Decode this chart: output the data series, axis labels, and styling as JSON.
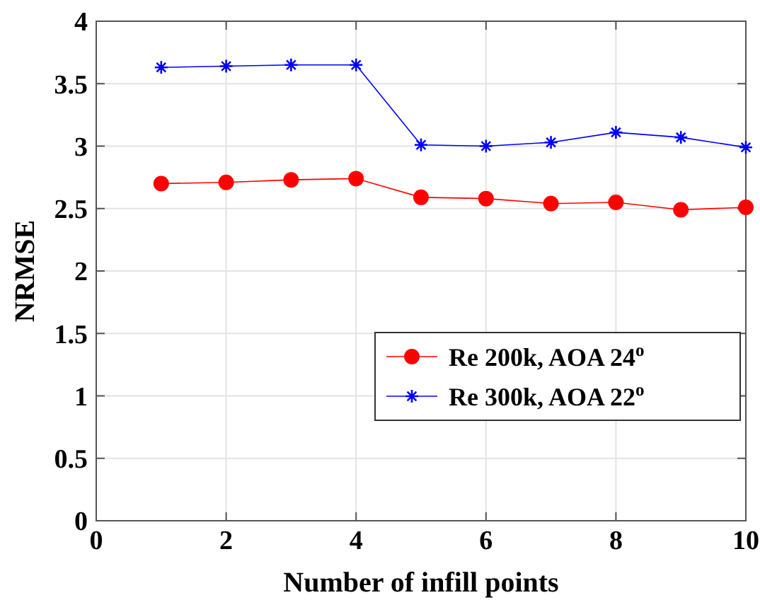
{
  "chart_data": {
    "type": "line",
    "xlabel": "Number of infill points",
    "ylabel": "NRMSE",
    "x": [
      1,
      2,
      3,
      4,
      5,
      6,
      7,
      8,
      9,
      10
    ],
    "series": [
      {
        "name": "Re 200k, AOA 24$^{o}$",
        "color": "#ff0000",
        "marker": "circle",
        "values": [
          2.7,
          2.71,
          2.73,
          2.74,
          2.59,
          2.58,
          2.54,
          2.55,
          2.49,
          2.51
        ]
      },
      {
        "name": "Re 300k, AOA 22$^{o}$",
        "color": "#0000ff",
        "marker": "cross",
        "values": [
          3.63,
          3.64,
          3.65,
          3.65,
          3.01,
          3.0,
          3.03,
          3.11,
          3.07,
          2.99
        ]
      }
    ],
    "xlim": [
      0,
      10
    ],
    "xticks": [
      0,
      2,
      4,
      6,
      8,
      10
    ],
    "ylim": [
      0,
      4
    ],
    "yticks": [
      0,
      0.5,
      1,
      1.5,
      2,
      2.5,
      3,
      3.5,
      4
    ],
    "grid": true,
    "legend": "right"
  }
}
